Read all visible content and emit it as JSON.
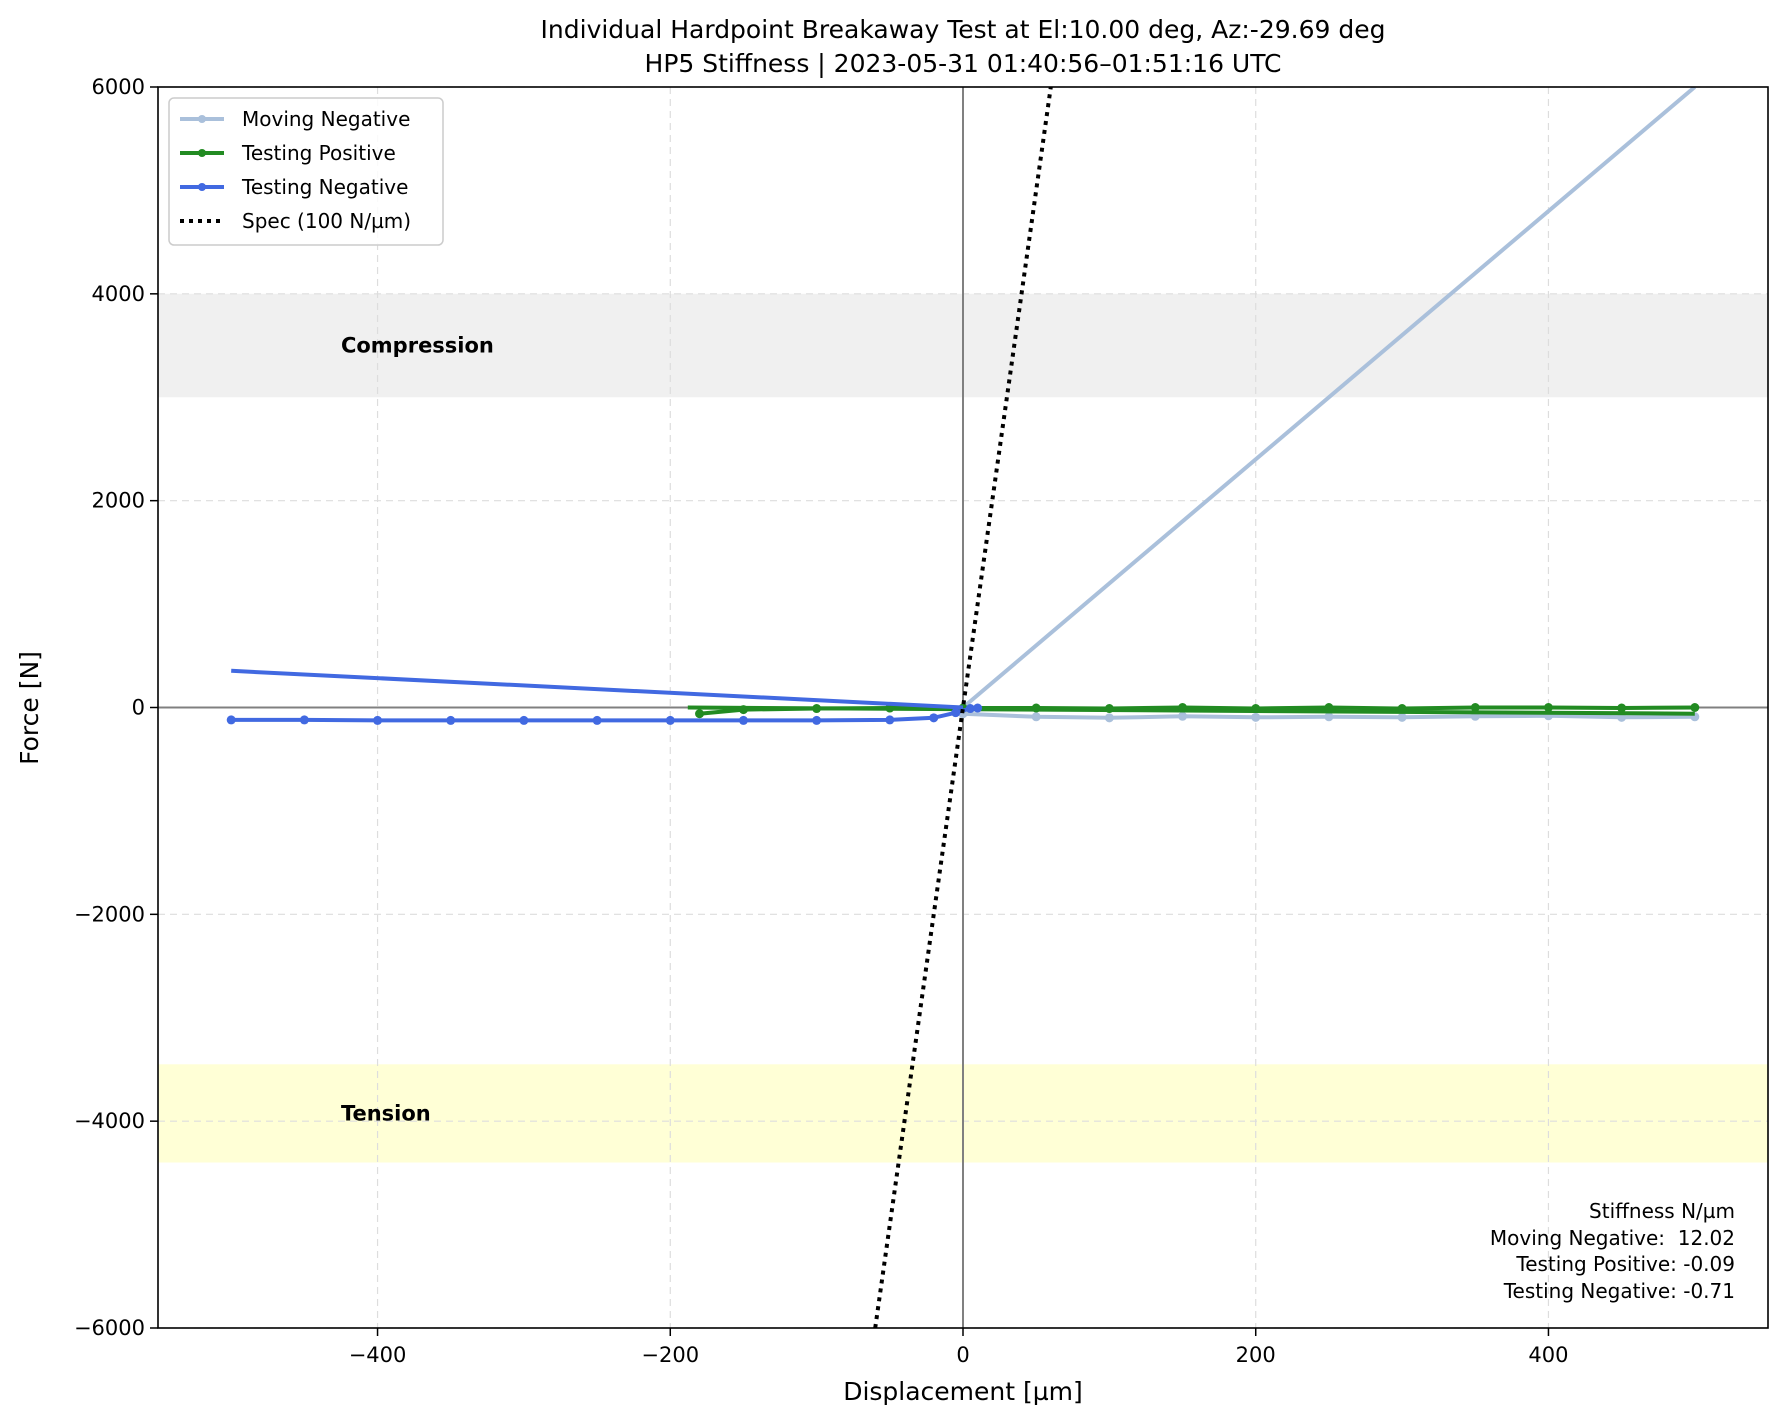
{
  "chart_data": {
    "type": "line",
    "title": "Individual Hardpoint Breakaway Test at El:10.00 deg, Az:-29.69 deg",
    "subtitle": "HP5 Stiffness | 2023-05-31 01:40:56–01:51:16 UTC",
    "xlabel": "Displacement [µm]",
    "ylabel": "Force [N]",
    "xlim": [
      -550,
      550
    ],
    "ylim": [
      -6000,
      6000
    ],
    "x_ticks": [
      -400,
      -200,
      0,
      200,
      400
    ],
    "x_tick_labels": [
      "−400",
      "−200",
      "0",
      "200",
      "400"
    ],
    "y_ticks": [
      -6000,
      -4000,
      -2000,
      0,
      2000,
      4000,
      6000
    ],
    "y_tick_labels": [
      "−6000",
      "−4000",
      "−2000",
      "0",
      "2000",
      "4000",
      "6000"
    ],
    "grid": true,
    "legend_position": "top-left",
    "bands": [
      {
        "label": "Compression",
        "y_from": 3000,
        "y_to": 4000,
        "color": "#f0f0f0"
      },
      {
        "label": "Tension",
        "y_from": -4400,
        "y_to": -3450,
        "color": "#ffffd6"
      }
    ],
    "reference_lines": [
      {
        "orientation": "vertical",
        "value": 0,
        "color": "#808080"
      },
      {
        "orientation": "horizontal",
        "value": 0,
        "color": "#808080"
      }
    ],
    "series": [
      {
        "name": "Moving Negative",
        "color": "#aac0db",
        "style": "solid-dots",
        "points": [
          [
            0,
            -60
          ],
          [
            50,
            -90
          ],
          [
            100,
            -100
          ],
          [
            150,
            -85
          ],
          [
            200,
            -95
          ],
          [
            250,
            -90
          ],
          [
            300,
            -95
          ],
          [
            350,
            -85
          ],
          [
            400,
            -80
          ],
          [
            450,
            -95
          ],
          [
            500,
            -90
          ]
        ],
        "fit": [
          [
            0,
            0
          ],
          [
            500,
            6000
          ]
        ]
      },
      {
        "name": "Testing Positive",
        "color": "#228b22",
        "style": "solid-dots",
        "points": [
          [
            -180,
            -60
          ],
          [
            -150,
            -20
          ],
          [
            -100,
            -10
          ],
          [
            -50,
            -5
          ],
          [
            0,
            -5
          ],
          [
            50,
            -5
          ],
          [
            100,
            -10
          ],
          [
            150,
            0
          ],
          [
            200,
            -10
          ],
          [
            250,
            0
          ],
          [
            300,
            -10
          ],
          [
            350,
            0
          ],
          [
            400,
            0
          ],
          [
            450,
            -5
          ],
          [
            500,
            0
          ]
        ],
        "fit": [
          [
            -188,
            0
          ],
          [
            500,
            -60
          ]
        ]
      },
      {
        "name": "Testing Negative",
        "color": "#4169e1",
        "style": "solid-dots",
        "points": [
          [
            -500,
            -120
          ],
          [
            -450,
            -120
          ],
          [
            -400,
            -125
          ],
          [
            -350,
            -125
          ],
          [
            -300,
            -125
          ],
          [
            -250,
            -125
          ],
          [
            -200,
            -125
          ],
          [
            -150,
            -125
          ],
          [
            -100,
            -125
          ],
          [
            -50,
            -120
          ],
          [
            -20,
            -100
          ],
          [
            -5,
            -50
          ],
          [
            5,
            -10
          ],
          [
            10,
            -5
          ]
        ],
        "fit": [
          [
            -500,
            355
          ],
          [
            0,
            0
          ]
        ]
      },
      {
        "name": "Spec (100 N/µm)",
        "color": "#000000",
        "style": "dotted",
        "points": [
          [
            -60,
            -6000
          ],
          [
            60,
            6000
          ]
        ]
      }
    ],
    "stats_box": {
      "title": "Stiffness N/µm",
      "lines": [
        "Moving Negative:  12.02",
        "Testing Positive: -0.09",
        "Testing Negative: -0.71"
      ]
    }
  }
}
